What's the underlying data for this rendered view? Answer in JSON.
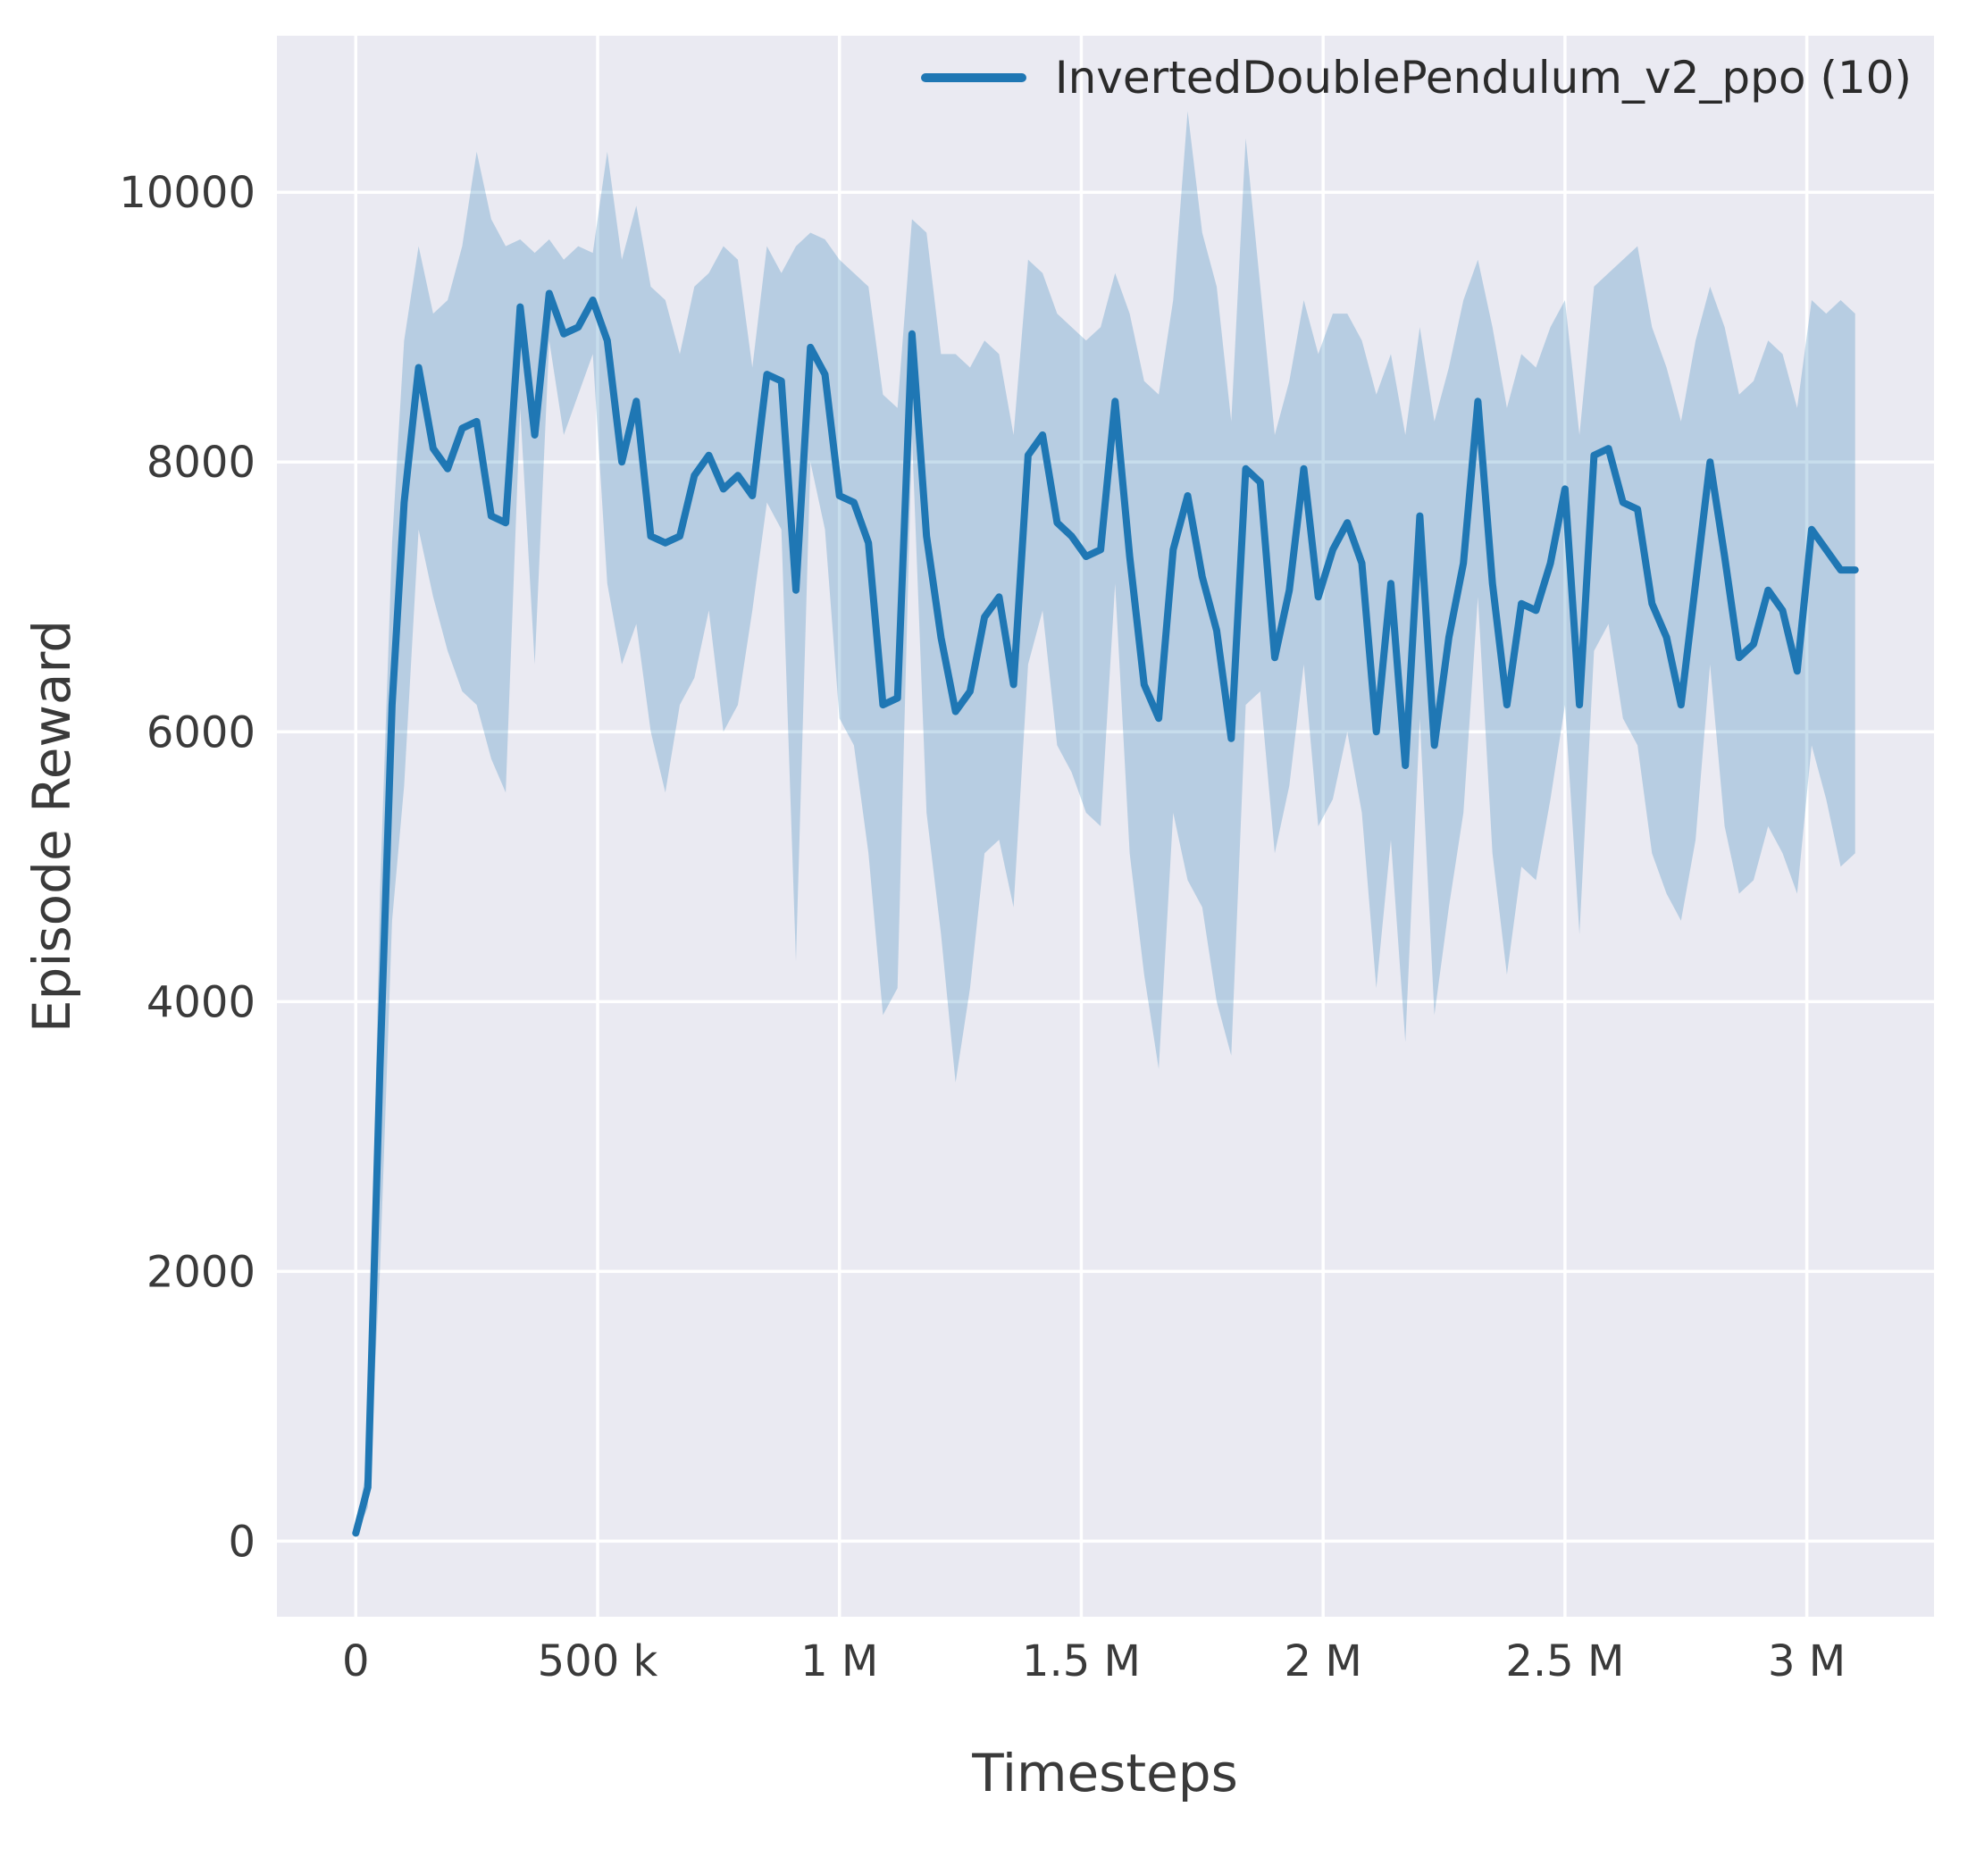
{
  "chart_data": {
    "type": "line",
    "title": "",
    "xlabel": "Timesteps",
    "ylabel": "Episode Reward",
    "grid": true,
    "legend_position": "upper right",
    "xlim": [
      -163000,
      3263000
    ],
    "ylim": [
      -560,
      11160
    ],
    "x_tick_values": [
      0,
      500000,
      1000000,
      1500000,
      2000000,
      2500000,
      3000000
    ],
    "x_tick_labels": [
      "0",
      "500 k",
      "1 M",
      "1.5 M",
      "2 M",
      "2.5 M",
      "3 M"
    ],
    "y_tick_values": [
      0,
      2000,
      4000,
      6000,
      8000,
      10000
    ],
    "y_tick_labels": [
      "0",
      "2000",
      "4000",
      "6000",
      "8000",
      "10000"
    ],
    "colors": {
      "plot_bg": "#eaeaf2",
      "grid": "#ffffff",
      "text": "#3a3a3a",
      "band_opacity": 0.25
    },
    "series": [
      {
        "name": "InvertedDoublePendulum_v2_ppo (10)",
        "color": "#1f77b4",
        "x": [
          0,
          25000,
          50000,
          75000,
          100000,
          130000,
          160000,
          190000,
          220000,
          250000,
          280000,
          310000,
          340000,
          370000,
          400000,
          430000,
          460000,
          490000,
          520000,
          550000,
          580000,
          610000,
          640000,
          670000,
          700000,
          730000,
          760000,
          790000,
          820000,
          850000,
          880000,
          910000,
          940000,
          970000,
          1000000,
          1030000,
          1060000,
          1090000,
          1120000,
          1150000,
          1180000,
          1210000,
          1240000,
          1270000,
          1300000,
          1330000,
          1360000,
          1390000,
          1420000,
          1450000,
          1480000,
          1510000,
          1540000,
          1570000,
          1600000,
          1630000,
          1660000,
          1690000,
          1720000,
          1750000,
          1780000,
          1810000,
          1840000,
          1870000,
          1900000,
          1930000,
          1960000,
          1990000,
          2020000,
          2050000,
          2080000,
          2110000,
          2140000,
          2170000,
          2200000,
          2230000,
          2260000,
          2290000,
          2320000,
          2350000,
          2380000,
          2410000,
          2440000,
          2470000,
          2500000,
          2530000,
          2560000,
          2590000,
          2620000,
          2650000,
          2680000,
          2710000,
          2740000,
          2770000,
          2800000,
          2830000,
          2860000,
          2890000,
          2920000,
          2950000,
          2980000,
          3010000,
          3040000,
          3070000,
          3100000
        ],
        "mean": [
          60,
          400,
          3500,
          6200,
          7700,
          8700,
          8100,
          7950,
          8250,
          8300,
          7600,
          7550,
          9150,
          8200,
          9250,
          8950,
          9000,
          9200,
          8900,
          8000,
          8450,
          7450,
          7400,
          7450,
          7900,
          8050,
          7800,
          7900,
          7750,
          8650,
          8600,
          7050,
          8850,
          8650,
          7750,
          7700,
          7400,
          6200,
          6250,
          8950,
          7450,
          6700,
          6150,
          6300,
          6850,
          7000,
          6350,
          8050,
          8200,
          7550,
          7450,
          7300,
          7350,
          8450,
          7300,
          6350,
          6100,
          7350,
          7750,
          7150,
          6750,
          5950,
          7950,
          7850,
          6550,
          7050,
          7950,
          7000,
          7350,
          7550,
          7250,
          6000,
          7100,
          5750,
          7600,
          5900,
          6700,
          7250,
          8450,
          7100,
          6200,
          6950,
          6900,
          7250,
          7800,
          6200,
          8050,
          8100,
          7700,
          7650,
          6950,
          6700,
          6200,
          7100,
          8000,
          7300,
          6550,
          6650,
          7050,
          6900,
          6450,
          7500,
          7350,
          7200,
          7200
        ],
        "band_low": [
          40,
          250,
          2000,
          4600,
          5600,
          7500,
          7000,
          6600,
          6300,
          6200,
          5800,
          5550,
          8400,
          6500,
          8900,
          8200,
          8500,
          8800,
          7100,
          6500,
          6800,
          6000,
          5550,
          6200,
          6400,
          6900,
          6000,
          6200,
          6900,
          7700,
          7500,
          4300,
          8000,
          7500,
          6100,
          5900,
          5100,
          3900,
          4100,
          8200,
          5400,
          4500,
          3400,
          4100,
          5100,
          5200,
          4700,
          6500,
          6900,
          5900,
          5700,
          5400,
          5300,
          7100,
          5100,
          4200,
          3500,
          5400,
          4900,
          4700,
          4000,
          3600,
          6200,
          6300,
          5100,
          5600,
          6500,
          5300,
          5500,
          6000,
          5400,
          4100,
          5200,
          3700,
          6100,
          3900,
          4700,
          5400,
          7000,
          5100,
          4200,
          5000,
          4900,
          5500,
          6200,
          4500,
          6600,
          6800,
          6100,
          5900,
          5100,
          4800,
          4600,
          5200,
          6500,
          5300,
          4800,
          4900,
          5300,
          5100,
          4800,
          5900,
          5500,
          5000,
          5100
        ],
        "band_high": [
          90,
          600,
          4800,
          7400,
          8900,
          9600,
          9100,
          9200,
          9600,
          10300,
          9800,
          9600,
          9650,
          9550,
          9650,
          9500,
          9600,
          9550,
          10300,
          9500,
          9900,
          9300,
          9200,
          8800,
          9300,
          9400,
          9600,
          9500,
          8700,
          9600,
          9400,
          9600,
          9700,
          9650,
          9500,
          9400,
          9300,
          8500,
          8400,
          9800,
          9700,
          8800,
          8800,
          8700,
          8900,
          8800,
          8200,
          9500,
          9400,
          9100,
          9000,
          8900,
          9000,
          9400,
          9100,
          8600,
          8500,
          9200,
          10600,
          9700,
          9300,
          8300,
          10400,
          9300,
          8200,
          8600,
          9200,
          8800,
          9100,
          9100,
          8900,
          8500,
          8800,
          8200,
          9000,
          8300,
          8700,
          9200,
          9500,
          9000,
          8400,
          8800,
          8700,
          9000,
          9200,
          8200,
          9300,
          9400,
          9500,
          9600,
          9000,
          8700,
          8300,
          8900,
          9300,
          9000,
          8500,
          8600,
          8900,
          8800,
          8400,
          9200,
          9100,
          9200,
          9100
        ]
      }
    ]
  }
}
